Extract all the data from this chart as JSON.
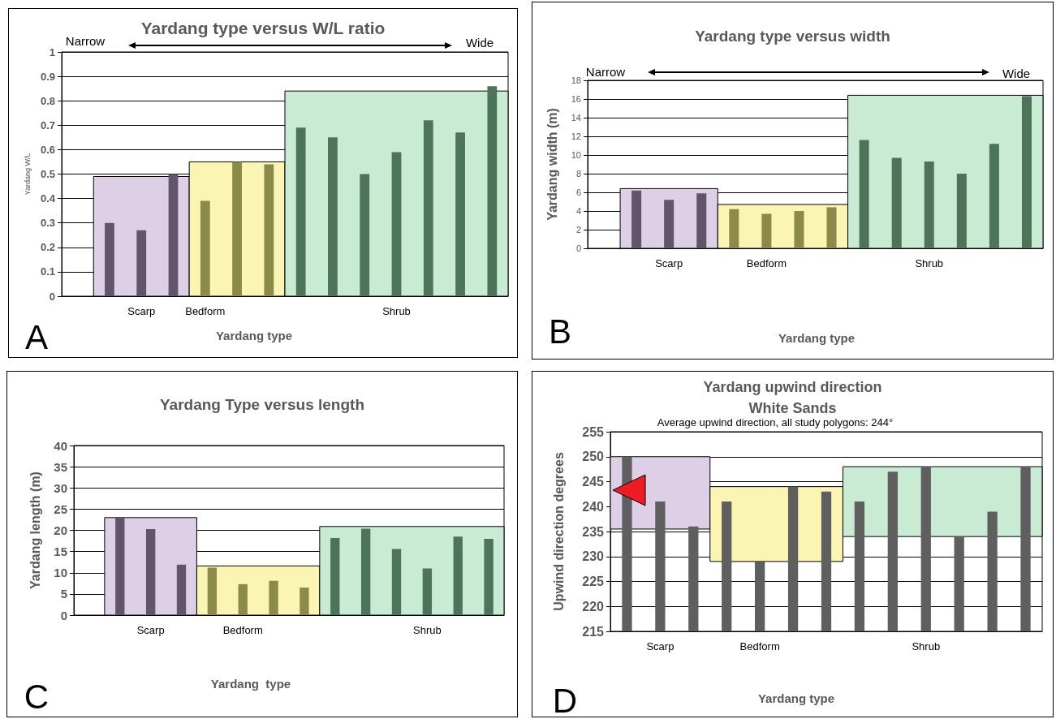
{
  "chart_data": [
    {
      "type": "bar",
      "title": "Yardang type versus W/L ratio",
      "xlabel": "Yardang type",
      "ylabel": "Yardang W/L",
      "annotations": [
        "Narrow",
        "Wide",
        "A"
      ],
      "categories": [
        null,
        null,
        "Scarp",
        null,
        "Bedform",
        null,
        null,
        null,
        null,
        null,
        "Shrub",
        null,
        null,
        null
      ],
      "series": [
        {
          "color": "#62556b",
          "values": [
            null,
            0.3,
            0.27,
            0.5,
            null,
            null,
            null,
            null,
            null,
            null,
            null,
            null,
            null,
            null
          ]
        },
        {
          "color": "#8a8a4a",
          "values": [
            null,
            null,
            null,
            null,
            0.39,
            0.55,
            0.54,
            null,
            null,
            null,
            null,
            null,
            null,
            null
          ]
        },
        {
          "color": "#4d7358",
          "values": [
            null,
            null,
            null,
            null,
            null,
            null,
            null,
            0.69,
            0.65,
            0.5,
            0.59,
            0.72,
            0.67,
            0.86
          ]
        }
      ],
      "bands": [
        {
          "axis": "y",
          "from": 0,
          "to": 0.49,
          "color": "#dccfe6"
        },
        {
          "axis": "y",
          "from": 0,
          "to": 0.55,
          "color": "#fbf5b4"
        },
        {
          "axis": "y",
          "from": 0,
          "to": 0.84,
          "color": "#c9ebd4"
        }
      ],
      "ylim": [
        0,
        1
      ],
      "yticks": [
        0,
        0.1,
        0.2,
        0.3,
        0.4,
        0.5,
        0.6,
        0.7,
        0.8,
        0.9,
        1
      ],
      "grid": "y"
    },
    {
      "type": "bar",
      "title": "Yardang type versus width",
      "xlabel": "Yardang type",
      "ylabel": "Yardang width (m)",
      "annotations": [
        "Narrow",
        "Wide",
        "B"
      ],
      "categories": [
        null,
        null,
        "Scarp",
        null,
        null,
        "Bedform",
        null,
        null,
        null,
        null,
        "Shrub",
        null,
        null,
        null
      ],
      "series": [
        {
          "color": "#62556b",
          "values": [
            null,
            6.2,
            5.2,
            5.9,
            null,
            null,
            null,
            null,
            null,
            null,
            null,
            null,
            null,
            null
          ]
        },
        {
          "color": "#8a8a4a",
          "values": [
            null,
            null,
            null,
            null,
            4.2,
            3.7,
            4.0,
            4.4,
            null,
            null,
            null,
            null,
            null,
            null
          ]
        },
        {
          "color": "#4d7358",
          "values": [
            null,
            null,
            null,
            null,
            null,
            null,
            null,
            null,
            11.6,
            9.7,
            9.3,
            8.0,
            11.2,
            16.3
          ]
        }
      ],
      "bands": [
        {
          "axis": "y",
          "from": 0,
          "to": 6.4,
          "color": "#dccfe6"
        },
        {
          "axis": "y",
          "from": 0,
          "to": 4.7,
          "color": "#fbf5b4"
        },
        {
          "axis": "y",
          "from": 0,
          "to": 16.4,
          "color": "#c9ebd4"
        }
      ],
      "ylim": [
        0,
        18
      ],
      "yticks": [
        0,
        2,
        4,
        6,
        8,
        10,
        12,
        14,
        16,
        18
      ],
      "grid": "y"
    },
    {
      "type": "bar",
      "title": "Yardang Type versus length",
      "xlabel": "Yardang  type",
      "ylabel": "Yardang length (m)",
      "annotations": [
        "C"
      ],
      "categories": [
        null,
        null,
        "Scarp",
        null,
        null,
        "Bedform",
        null,
        null,
        null,
        null,
        null,
        "Shrub",
        null,
        null
      ],
      "series": [
        {
          "color": "#62556b",
          "values": [
            null,
            23,
            20.3,
            11.9,
            null,
            null,
            null,
            null,
            null,
            null,
            null,
            null,
            null,
            null
          ]
        },
        {
          "color": "#8a8a4a",
          "values": [
            null,
            null,
            null,
            null,
            11.2,
            7.3,
            8.1,
            6.5,
            null,
            null,
            null,
            null,
            null,
            null
          ]
        },
        {
          "color": "#4d7358",
          "values": [
            null,
            null,
            null,
            null,
            null,
            null,
            null,
            null,
            18.2,
            20.4,
            15.6,
            11,
            18.5,
            18
          ]
        }
      ],
      "bands": [
        {
          "axis": "y",
          "from": 0,
          "to": 23,
          "color": "#dccfe6"
        },
        {
          "axis": "y",
          "from": 0,
          "to": 11.6,
          "color": "#fbf5b4"
        },
        {
          "axis": "y",
          "from": 0,
          "to": 20.9,
          "color": "#c9ebd4"
        }
      ],
      "ylim": [
        0,
        40
      ],
      "yticks": [
        0,
        5,
        10,
        15,
        20,
        25,
        30,
        35,
        40
      ],
      "grid": "y"
    },
    {
      "type": "bar",
      "title": "Yardang upwind direction",
      "subtitle": "White Sands",
      "xlabel": "Yardang type",
      "ylabel": "Upwind direction degrees",
      "annotations": [
        "Average upwind direction, all study polygons: 244°",
        "D"
      ],
      "categories": [
        null,
        "Scarp",
        null,
        null,
        "Bedform",
        null,
        null,
        null,
        null,
        "Shrub",
        null,
        null,
        null
      ],
      "series": [
        {
          "color": "#5f5f5f",
          "values": [
            250,
            241,
            236,
            null,
            null,
            null,
            null,
            null,
            null,
            null,
            null,
            null,
            null
          ]
        },
        {
          "color": "#5f5f5f",
          "values": [
            null,
            null,
            null,
            241,
            229,
            244,
            243,
            null,
            null,
            null,
            null,
            null,
            null
          ]
        },
        {
          "color": "#5f5f5f",
          "values": [
            null,
            null,
            null,
            null,
            null,
            null,
            null,
            241,
            247,
            248,
            234,
            239,
            248
          ]
        }
      ],
      "bands": [
        {
          "axis": "y",
          "from": 235.5,
          "to": 250,
          "color": "#dccfe6"
        },
        {
          "axis": "y",
          "from": 229,
          "to": 244,
          "color": "#fbf5b4"
        },
        {
          "axis": "y",
          "from": 234,
          "to": 248,
          "color": "#c9ebd4"
        }
      ],
      "ylim": [
        215,
        255
      ],
      "yticks": [
        215,
        220,
        225,
        230,
        235,
        240,
        245,
        250,
        255
      ],
      "grid": "y"
    }
  ]
}
